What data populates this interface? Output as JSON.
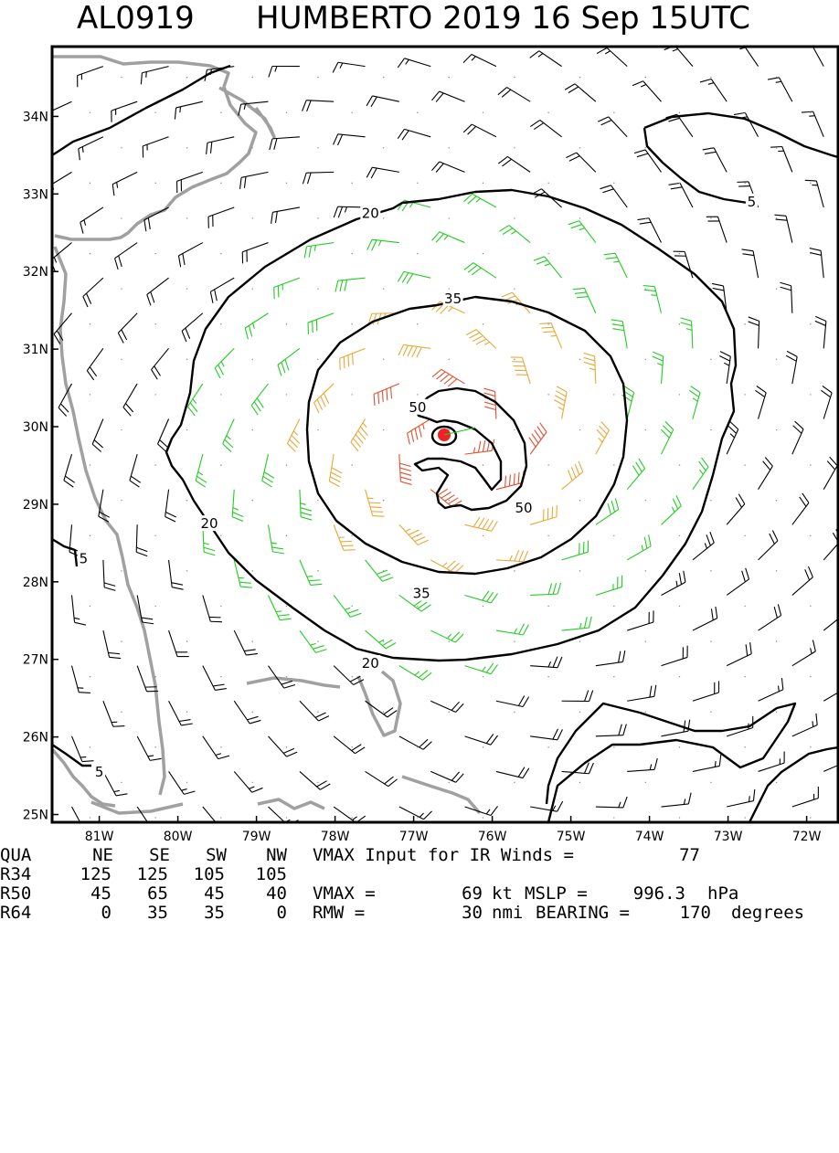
{
  "title": {
    "storm_id": "AL0919",
    "storm_name_date": "HUMBERTO 2019 16 Sep 15UTC"
  },
  "chart_data": {
    "type": "map",
    "lon_ticks": [
      "81W",
      "80W",
      "79W",
      "78W",
      "77W",
      "76W",
      "75W",
      "74W",
      "73W",
      "72W"
    ],
    "lat_ticks": [
      "34N",
      "33N",
      "32N",
      "31N",
      "30N",
      "29N",
      "28N",
      "27N",
      "26N",
      "25N"
    ],
    "lon_range": [
      -81.6,
      -71.6
    ],
    "lat_range": [
      24.9,
      34.9
    ],
    "center": {
      "lon": -76.5,
      "lat": 29.9
    },
    "contour_levels": [
      {
        "label": "5",
        "color": "#000000"
      },
      {
        "label": "20",
        "color": "#000000"
      },
      {
        "label": "35",
        "color": "#000000"
      },
      {
        "label": "50",
        "color": "#000000"
      }
    ],
    "contour_labels": [
      {
        "text": "20",
        "lon": -77.55,
        "lat": 32.75
      },
      {
        "text": "35",
        "lon": -76.5,
        "lat": 31.65
      },
      {
        "text": "50",
        "lon": -76.95,
        "lat": 30.25
      },
      {
        "text": "50",
        "lon": -75.6,
        "lat": 28.95
      },
      {
        "text": "35",
        "lon": -76.9,
        "lat": 27.85
      },
      {
        "text": "20",
        "lon": -79.6,
        "lat": 28.75
      },
      {
        "text": "20",
        "lon": -77.55,
        "lat": 26.95
      },
      {
        "text": "5",
        "lon": -72.7,
        "lat": 32.9
      },
      {
        "text": "5",
        "lon": -81.2,
        "lat": 28.3
      },
      {
        "text": "5",
        "lon": -81.0,
        "lat": 25.55
      }
    ],
    "wind_colors": {
      "low": "#000000",
      "tropical_storm": "#22cc22",
      "storm": "#e8a838",
      "hurricane": "#e05030",
      "center_marker": "#ee2222",
      "coastline": "#a0a0a0"
    }
  },
  "table": {
    "header": {
      "label": "QUA",
      "cols": [
        "NE",
        "SE",
        "SW",
        "NW"
      ]
    },
    "rows": [
      {
        "label": "R34",
        "values": [
          "125",
          "125",
          "105",
          "105"
        ]
      },
      {
        "label": "R50",
        "values": [
          "45",
          "65",
          "45",
          "40"
        ]
      },
      {
        "label": "R64",
        "values": [
          "0",
          "35",
          "35",
          "0"
        ]
      }
    ],
    "vmax_input_text": "VMAX Input for IR Winds =",
    "vmax_input_value": "77",
    "vmax_text": "VMAX =",
    "vmax_value": "69",
    "vmax_unit": "kt",
    "mslp_text": "MSLP =",
    "mslp_value": "996.3",
    "mslp_unit": "hPa",
    "rmw_text": "RMW =",
    "rmw_value": "30",
    "rmw_unit": "nmi",
    "bearing_text": "BEARING =",
    "bearing_value": "170",
    "bearing_unit": "degrees"
  }
}
